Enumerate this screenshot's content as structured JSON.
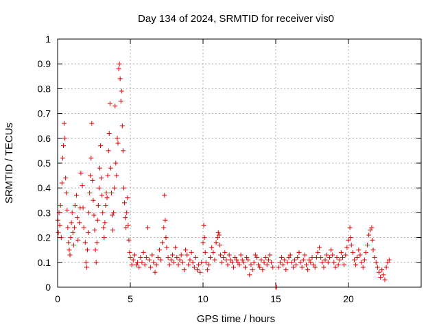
{
  "chart_data": {
    "type": "scatter",
    "title": "Day 134 of 2024, SRMTID for receiver vis0",
    "xlabel": "GPS time / hours",
    "ylabel": "SRMTID / TECUs",
    "xlim": [
      0,
      25
    ],
    "ylim": [
      0,
      1
    ],
    "x_ticks": [
      0,
      5,
      10,
      15,
      20
    ],
    "x_tick_labels": [
      "0",
      "5",
      "10",
      "15",
      "20"
    ],
    "y_ticks": [
      0,
      0.1,
      0.2,
      0.3,
      0.4,
      0.5,
      0.6,
      0.7,
      0.8,
      0.9,
      1
    ],
    "y_tick_labels": [
      "0",
      "0.1",
      "0.2",
      "0.3",
      "0.4",
      "0.5",
      "0.6",
      "0.7",
      "0.8",
      "0.9",
      "1"
    ],
    "grid": true,
    "marker": "+",
    "marker_color": "#e00000",
    "series": [
      {
        "name": "vis0",
        "points": [
          [
            0.02,
            0.27
          ],
          [
            0.05,
            0.22
          ],
          [
            0.1,
            0.3
          ],
          [
            0.15,
            0.25
          ],
          [
            0.2,
            0.33
          ],
          [
            0.25,
            0.2
          ],
          [
            0.3,
            0.42
          ],
          [
            0.35,
            0.52
          ],
          [
            0.4,
            0.57
          ],
          [
            0.45,
            0.66
          ],
          [
            0.5,
            0.6
          ],
          [
            0.55,
            0.44
          ],
          [
            0.6,
            0.38
          ],
          [
            0.65,
            0.31
          ],
          [
            0.7,
            0.24
          ],
          [
            0.75,
            0.18
          ],
          [
            0.8,
            0.15
          ],
          [
            0.85,
            0.13
          ],
          [
            0.9,
            0.2
          ],
          [
            0.95,
            0.26
          ],
          [
            1.0,
            0.3
          ],
          [
            1.05,
            0.22
          ],
          [
            1.1,
            0.17
          ],
          [
            1.15,
            0.24
          ],
          [
            1.2,
            0.33
          ],
          [
            1.3,
            0.37
          ],
          [
            1.35,
            0.28
          ],
          [
            1.4,
            0.19
          ],
          [
            1.5,
            0.26
          ],
          [
            1.55,
            0.32
          ],
          [
            1.6,
            0.46
          ],
          [
            1.7,
            0.41
          ],
          [
            1.75,
            0.32
          ],
          [
            1.8,
            0.24
          ],
          [
            1.9,
            0.18
          ],
          [
            1.95,
            0.1
          ],
          [
            2.0,
            0.08
          ],
          [
            2.05,
            0.15
          ],
          [
            2.1,
            0.22
          ],
          [
            2.15,
            0.3
          ],
          [
            2.2,
            0.38
          ],
          [
            2.25,
            0.45
          ],
          [
            2.3,
            0.52
          ],
          [
            2.35,
            0.66
          ],
          [
            2.4,
            0.43
          ],
          [
            2.45,
            0.35
          ],
          [
            2.5,
            0.29
          ],
          [
            2.55,
            0.23
          ],
          [
            2.6,
            0.15
          ],
          [
            2.65,
            0.1
          ],
          [
            2.7,
            0.18
          ],
          [
            2.75,
            0.27
          ],
          [
            2.8,
            0.33
          ],
          [
            2.85,
            0.4
          ],
          [
            2.9,
            0.48
          ],
          [
            2.95,
            0.57
          ],
          [
            3.0,
            0.44
          ],
          [
            3.05,
            0.37
          ],
          [
            3.1,
            0.3
          ],
          [
            3.15,
            0.24
          ],
          [
            3.2,
            0.2
          ],
          [
            3.25,
            0.26
          ],
          [
            3.3,
            0.33
          ],
          [
            3.35,
            0.38
          ],
          [
            3.4,
            0.36
          ],
          [
            3.45,
            0.45
          ],
          [
            3.5,
            0.55
          ],
          [
            3.55,
            0.62
          ],
          [
            3.6,
            0.74
          ],
          [
            3.65,
            0.48
          ],
          [
            3.7,
            0.38
          ],
          [
            3.75,
            0.29
          ],
          [
            3.8,
            0.23
          ],
          [
            3.85,
            0.3
          ],
          [
            3.9,
            0.4
          ],
          [
            3.95,
            0.73
          ],
          [
            4.0,
            0.5
          ],
          [
            4.05,
            0.45
          ],
          [
            4.1,
            0.6
          ],
          [
            4.15,
            0.58
          ],
          [
            4.2,
            0.88
          ],
          [
            4.25,
            0.9
          ],
          [
            4.3,
            0.84
          ],
          [
            4.35,
            0.75
          ],
          [
            4.4,
            0.79
          ],
          [
            4.45,
            0.65
          ],
          [
            4.5,
            0.55
          ],
          [
            4.55,
            0.4
          ],
          [
            4.6,
            0.34
          ],
          [
            4.65,
            0.28
          ],
          [
            4.7,
            0.24
          ],
          [
            4.75,
            0.3
          ],
          [
            4.8,
            0.36
          ],
          [
            4.85,
            0.25
          ],
          [
            4.9,
            0.19
          ],
          [
            4.95,
            0.14
          ],
          [
            5.0,
            0.12
          ],
          [
            5.1,
            0.09
          ],
          [
            5.2,
            0.11
          ],
          [
            5.3,
            0.13
          ],
          [
            5.4,
            0.09
          ],
          [
            5.5,
            0.1
          ],
          [
            5.6,
            0.08
          ],
          [
            5.7,
            0.12
          ],
          [
            5.8,
            0.1
          ],
          [
            5.9,
            0.14
          ],
          [
            6.0,
            0.09
          ],
          [
            6.1,
            0.12
          ],
          [
            6.2,
            0.24
          ],
          [
            6.3,
            0.11
          ],
          [
            6.4,
            0.08
          ],
          [
            6.5,
            0.13
          ],
          [
            6.6,
            0.1
          ],
          [
            6.7,
            0.06
          ],
          [
            6.8,
            0.09
          ],
          [
            6.9,
            0.12
          ],
          [
            7.0,
            0.15
          ],
          [
            7.1,
            0.11
          ],
          [
            7.2,
            0.18
          ],
          [
            7.3,
            0.24
          ],
          [
            7.35,
            0.37
          ],
          [
            7.4,
            0.27
          ],
          [
            7.45,
            0.2
          ],
          [
            7.5,
            0.16
          ],
          [
            7.6,
            0.12
          ],
          [
            7.7,
            0.09
          ],
          [
            7.8,
            0.11
          ],
          [
            7.9,
            0.13
          ],
          [
            8.0,
            0.1
          ],
          [
            8.1,
            0.16
          ],
          [
            8.2,
            0.12
          ],
          [
            8.3,
            0.09
          ],
          [
            8.4,
            0.11
          ],
          [
            8.5,
            0.13
          ],
          [
            8.6,
            0.1
          ],
          [
            8.7,
            0.07
          ],
          [
            8.8,
            0.15
          ],
          [
            8.9,
            0.13
          ],
          [
            9.0,
            0.09
          ],
          [
            9.1,
            0.11
          ],
          [
            9.2,
            0.14
          ],
          [
            9.3,
            0.1
          ],
          [
            9.4,
            0.08
          ],
          [
            9.5,
            0.12
          ],
          [
            9.6,
            0.07
          ],
          [
            9.7,
            0.09
          ],
          [
            9.8,
            0.06
          ],
          [
            9.9,
            0.1
          ],
          [
            10.0,
            0.18
          ],
          [
            10.05,
            0.25
          ],
          [
            10.1,
            0.2
          ],
          [
            10.15,
            0.14
          ],
          [
            10.2,
            0.1
          ],
          [
            10.3,
            0.07
          ],
          [
            10.4,
            0.09
          ],
          [
            10.5,
            0.12
          ],
          [
            10.6,
            0.16
          ],
          [
            10.7,
            0.14
          ],
          [
            10.8,
            0.11
          ],
          [
            10.9,
            0.18
          ],
          [
            11.0,
            0.2
          ],
          [
            11.05,
            0.22
          ],
          [
            11.1,
            0.21
          ],
          [
            11.15,
            0.17
          ],
          [
            11.2,
            0.13
          ],
          [
            11.3,
            0.1
          ],
          [
            11.4,
            0.12
          ],
          [
            11.5,
            0.14
          ],
          [
            11.6,
            0.11
          ],
          [
            11.7,
            0.09
          ],
          [
            11.8,
            0.13
          ],
          [
            11.9,
            0.11
          ],
          [
            12.0,
            0.1
          ],
          [
            12.1,
            0.08
          ],
          [
            12.2,
            0.12
          ],
          [
            12.3,
            0.11
          ],
          [
            12.4,
            0.1
          ],
          [
            12.5,
            0.09
          ],
          [
            12.6,
            0.13
          ],
          [
            12.7,
            0.11
          ],
          [
            12.8,
            0.1
          ],
          [
            12.9,
            0.08
          ],
          [
            13.0,
            0.12
          ],
          [
            13.1,
            0.11
          ],
          [
            13.2,
            0.05
          ],
          [
            13.3,
            0.09
          ],
          [
            13.4,
            0.07
          ],
          [
            13.5,
            0.1
          ],
          [
            13.6,
            0.13
          ],
          [
            13.7,
            0.12
          ],
          [
            13.8,
            0.09
          ],
          [
            13.9,
            0.08
          ],
          [
            14.0,
            0.11
          ],
          [
            14.1,
            0.07
          ],
          [
            14.2,
            0.1
          ],
          [
            14.3,
            0.12
          ],
          [
            14.4,
            0.09
          ],
          [
            14.5,
            0.11
          ],
          [
            14.6,
            0.13
          ],
          [
            14.7,
            0.1
          ],
          [
            14.8,
            0.08
          ],
          [
            15.0,
            0.0
          ],
          [
            15.05,
            0.0
          ],
          [
            15.2,
            0.08
          ],
          [
            15.3,
            0.1
          ],
          [
            15.4,
            0.12
          ],
          [
            15.5,
            0.09
          ],
          [
            15.6,
            0.11
          ],
          [
            15.7,
            0.07
          ],
          [
            15.8,
            0.1
          ],
          [
            15.9,
            0.12
          ],
          [
            16.0,
            0.13
          ],
          [
            16.1,
            0.1
          ],
          [
            16.2,
            0.08
          ],
          [
            16.3,
            0.11
          ],
          [
            16.4,
            0.09
          ],
          [
            16.5,
            0.12
          ],
          [
            16.6,
            0.14
          ],
          [
            16.7,
            0.1
          ],
          [
            16.8,
            0.08
          ],
          [
            16.9,
            0.11
          ],
          [
            17.0,
            0.13
          ],
          [
            17.1,
            0.09
          ],
          [
            17.2,
            0.07
          ],
          [
            17.3,
            0.11
          ],
          [
            17.4,
            0.1
          ],
          [
            17.5,
            0.12
          ],
          [
            17.6,
            0.09
          ],
          [
            17.7,
            0.08
          ],
          [
            17.8,
            0.12
          ],
          [
            17.9,
            0.14
          ],
          [
            18.0,
            0.16
          ],
          [
            18.1,
            0.12
          ],
          [
            18.2,
            0.1
          ],
          [
            18.3,
            0.08
          ],
          [
            18.4,
            0.11
          ],
          [
            18.5,
            0.13
          ],
          [
            18.6,
            0.1
          ],
          [
            18.7,
            0.12
          ],
          [
            18.8,
            0.15
          ],
          [
            18.9,
            0.13
          ],
          [
            19.0,
            0.1
          ],
          [
            19.1,
            0.08
          ],
          [
            19.2,
            0.12
          ],
          [
            19.3,
            0.09
          ],
          [
            19.4,
            0.11
          ],
          [
            19.5,
            0.14
          ],
          [
            19.6,
            0.12
          ],
          [
            19.7,
            0.09
          ],
          [
            19.8,
            0.13
          ],
          [
            19.9,
            0.16
          ],
          [
            20.0,
            0.19
          ],
          [
            20.1,
            0.24
          ],
          [
            20.15,
            0.2
          ],
          [
            20.2,
            0.17
          ],
          [
            20.3,
            0.14
          ],
          [
            20.4,
            0.11
          ],
          [
            20.5,
            0.09
          ],
          [
            20.6,
            0.12
          ],
          [
            20.7,
            0.15
          ],
          [
            20.8,
            0.13
          ],
          [
            20.9,
            0.1
          ],
          [
            21.0,
            0.08
          ],
          [
            21.1,
            0.11
          ],
          [
            21.2,
            0.14
          ],
          [
            21.3,
            0.17
          ],
          [
            21.4,
            0.21
          ],
          [
            21.5,
            0.23
          ],
          [
            21.6,
            0.24
          ],
          [
            21.65,
            0.19
          ],
          [
            21.7,
            0.15
          ],
          [
            21.8,
            0.12
          ],
          [
            21.9,
            0.1
          ],
          [
            22.0,
            0.08
          ],
          [
            22.1,
            0.06
          ],
          [
            22.2,
            0.04
          ],
          [
            22.3,
            0.07
          ],
          [
            22.4,
            0.05
          ],
          [
            22.5,
            0.03
          ],
          [
            22.6,
            0.08
          ],
          [
            22.7,
            0.1
          ],
          [
            22.8,
            0.11
          ]
        ]
      }
    ]
  }
}
